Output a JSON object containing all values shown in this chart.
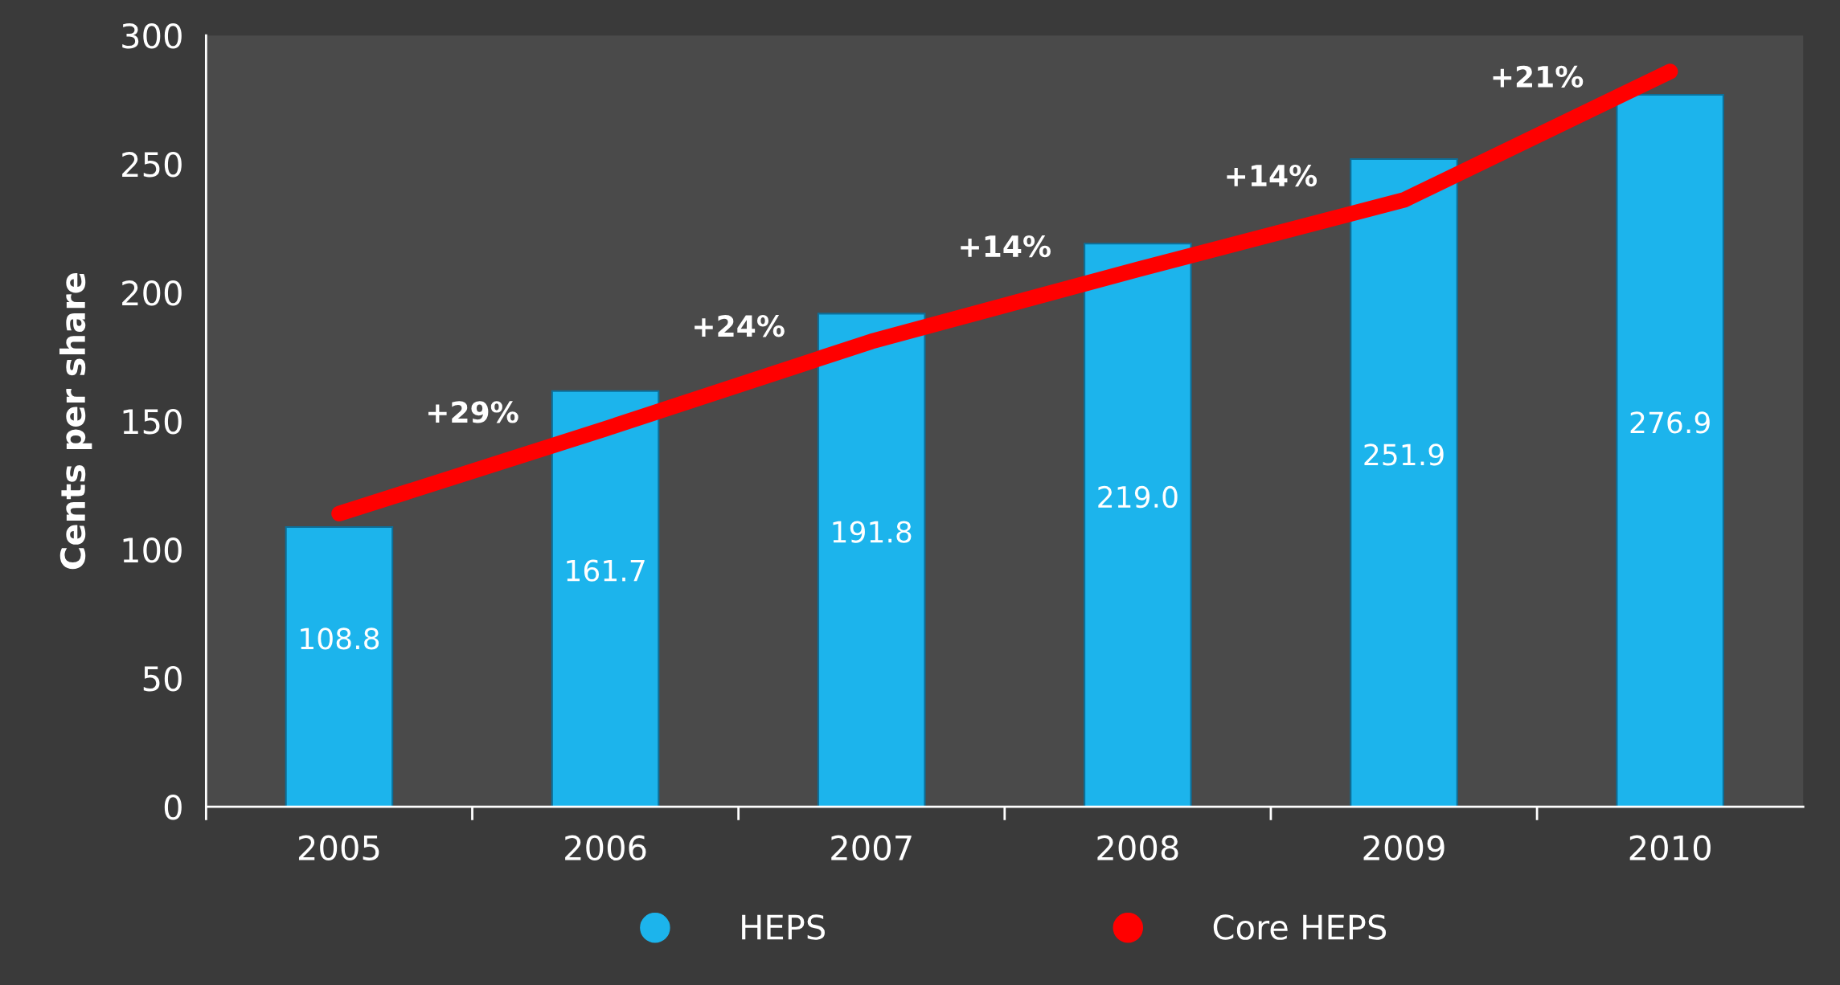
{
  "chart_data": {
    "type": "bar",
    "ylabel": "Cents per share",
    "categories": [
      "2005",
      "2006",
      "2007",
      "2008",
      "2009",
      "2010"
    ],
    "series": [
      {
        "name": "HEPS",
        "color": "#1cb4ec",
        "values": [
          108.8,
          161.7,
          191.8,
          219.0,
          251.9,
          276.9
        ],
        "value_labels": [
          "108.8",
          "161.7",
          "191.8",
          "219.0",
          "251.9",
          "276.9"
        ]
      },
      {
        "name": "Core HEPS",
        "type": "line",
        "color": "#ff0000",
        "values": [
          114,
          147,
          181,
          209,
          236,
          286
        ]
      }
    ],
    "annotations": [
      "+29%",
      "+24%",
      "+14%",
      "+14%",
      "+21%"
    ],
    "ylim": [
      0,
      300
    ],
    "yticks": [
      0,
      50,
      100,
      150,
      200,
      250,
      300
    ],
    "grid": false,
    "legend": "bottom",
    "line_style": "solid"
  }
}
